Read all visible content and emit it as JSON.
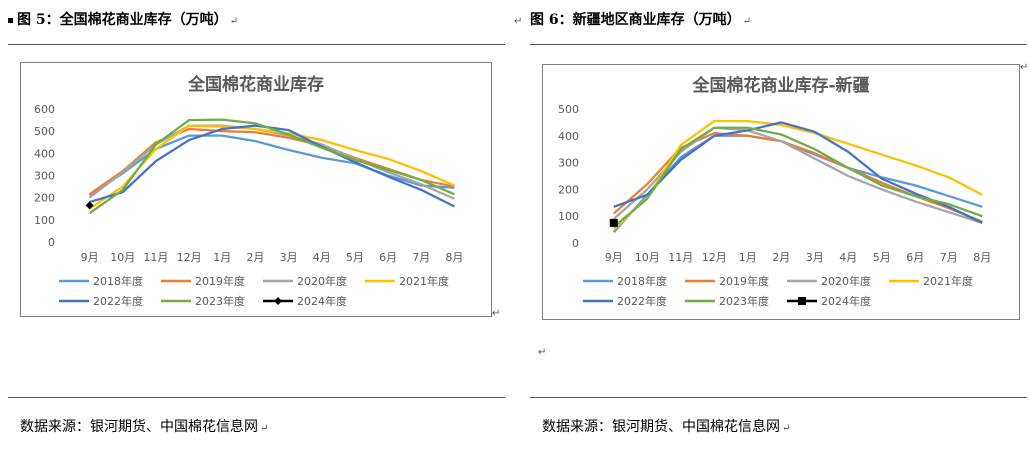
{
  "paragraph_mark": "↵",
  "figures": [
    {
      "caption": "图 5：全国棉花商业库存（万吨）",
      "source": "数据来源：银河期货、中国棉花信息网"
    },
    {
      "caption": "图 6：新疆地区商业库存（万吨）",
      "source": "数据来源：银河期货、中国棉花信息网"
    }
  ],
  "colors": {
    "2018年度": "#5b9bd5",
    "2019年度": "#ed7d31",
    "2020年度": "#a5a5a5",
    "2021年度": "#ffc000",
    "2022年度": "#4472c4",
    "2023年度": "#70ad47",
    "2024年度": "#000000"
  },
  "chart_data": [
    {
      "type": "line",
      "title": "全国棉花商业库存",
      "categories": [
        "9月",
        "10月",
        "11月",
        "12月",
        "1月",
        "2月",
        "3月",
        "4月",
        "5月",
        "6月",
        "7月",
        "8月"
      ],
      "ylim": [
        0,
        600
      ],
      "yticks": [
        0,
        100,
        200,
        300,
        400,
        500,
        600
      ],
      "grid": false,
      "legend_position": "bottom",
      "series": [
        {
          "name": "2018年度",
          "values": [
            210,
            310,
            420,
            480,
            480,
            455,
            415,
            380,
            355,
            300,
            255,
            245
          ]
        },
        {
          "name": "2019年度",
          "values": [
            215,
            320,
            450,
            510,
            500,
            495,
            470,
            435,
            380,
            330,
            280,
            250
          ]
        },
        {
          "name": "2020年度",
          "values": [
            200,
            315,
            440,
            525,
            525,
            510,
            480,
            440,
            375,
            315,
            260,
            195
          ]
        },
        {
          "name": "2021年度",
          "values": [
            150,
            250,
            420,
            525,
            520,
            510,
            490,
            460,
            415,
            375,
            320,
            255
          ]
        },
        {
          "name": "2022年度",
          "values": [
            180,
            225,
            365,
            460,
            510,
            525,
            505,
            430,
            360,
            295,
            235,
            160
          ]
        },
        {
          "name": "2023年度",
          "values": [
            130,
            235,
            440,
            550,
            552,
            535,
            485,
            425,
            370,
            325,
            280,
            215
          ]
        },
        {
          "name": "2024年度",
          "values": [
            165,
            null,
            null,
            null,
            null,
            null,
            null,
            null,
            null,
            null,
            null,
            null
          ],
          "marker": "diamond"
        }
      ]
    },
    {
      "type": "line",
      "title": "全国棉花商业库存-新疆",
      "categories": [
        "9月",
        "10月",
        "11月",
        "12月",
        "1月",
        "2月",
        "3月",
        "4月",
        "5月",
        "6月",
        "7月",
        "8月"
      ],
      "ylim": [
        0,
        500
      ],
      "yticks": [
        0,
        100,
        200,
        300,
        400,
        500
      ],
      "grid": false,
      "legend_position": "bottom",
      "series": [
        {
          "name": "2018年度",
          "values": [
            40,
            180,
            320,
            400,
            400,
            380,
            330,
            280,
            245,
            215,
            175,
            135
          ]
        },
        {
          "name": "2019年度",
          "values": [
            110,
            220,
            355,
            410,
            400,
            380,
            335,
            280,
            225,
            175,
            130,
            80
          ]
        },
        {
          "name": "2020年度",
          "values": [
            90,
            200,
            340,
            430,
            420,
            380,
            315,
            250,
            200,
            155,
            115,
            75
          ]
        },
        {
          "name": "2021年度",
          "values": [
            50,
            170,
            365,
            455,
            455,
            440,
            410,
            370,
            330,
            290,
            245,
            180
          ]
        },
        {
          "name": "2022年度",
          "values": [
            135,
            180,
            310,
            400,
            420,
            450,
            415,
            340,
            240,
            185,
            135,
            75
          ]
        },
        {
          "name": "2023年度",
          "values": [
            60,
            165,
            350,
            430,
            430,
            405,
            350,
            280,
            215,
            175,
            145,
            100
          ]
        },
        {
          "name": "2024年度",
          "values": [
            75,
            null,
            null,
            null,
            null,
            null,
            null,
            null,
            null,
            null,
            null,
            null
          ],
          "marker": "square"
        }
      ]
    }
  ]
}
